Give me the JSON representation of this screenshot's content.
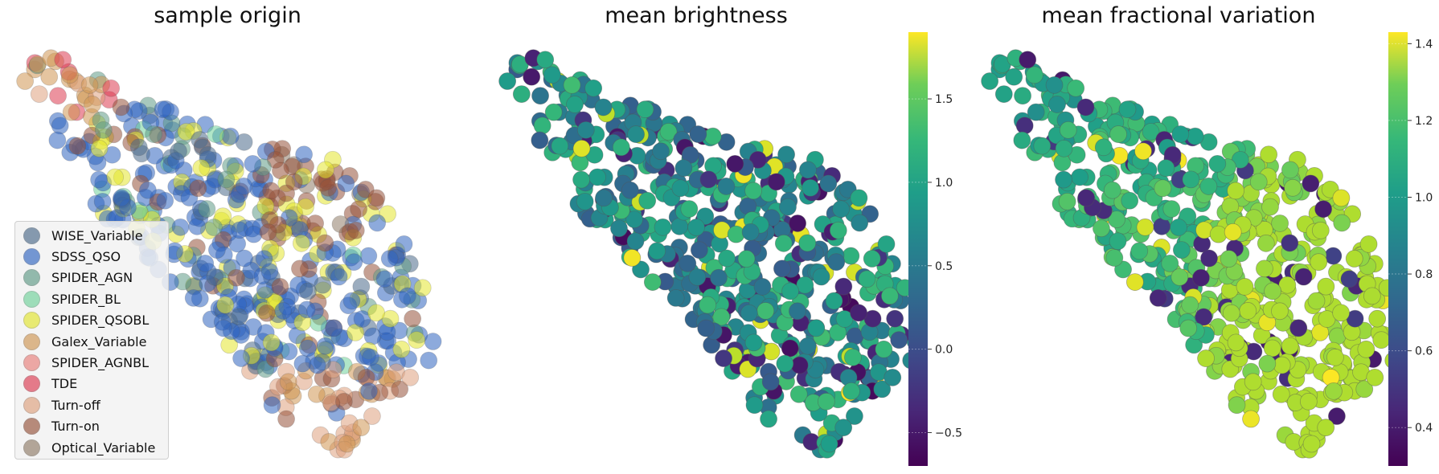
{
  "chart_data": [
    {
      "type": "scatter",
      "title": "sample origin",
      "coloring": "categorical",
      "legend_placement": "lower-left",
      "grid": false,
      "series": [
        {
          "name": "WISE_Variable",
          "color": "#4a6a8a"
        },
        {
          "name": "SDSS_QSO",
          "color": "#2f64c0"
        },
        {
          "name": "SPIDER_AGN",
          "color": "#5f9a86"
        },
        {
          "name": "SPIDER_BL",
          "color": "#6fd29a"
        },
        {
          "name": "SPIDER_QSOBL",
          "color": "#e3e52e"
        },
        {
          "name": "Galex_Variable",
          "color": "#cf9552"
        },
        {
          "name": "SPIDER_AGNBL",
          "color": "#e97f7a"
        },
        {
          "name": "TDE",
          "color": "#dc3a50"
        },
        {
          "name": "Turn-off",
          "color": "#dea07d"
        },
        {
          "name": "Turn-on",
          "color": "#95523a"
        },
        {
          "name": "Optical_Variable",
          "color": "#8f7c68"
        }
      ]
    },
    {
      "type": "scatter",
      "title": "mean brightness",
      "coloring": "continuous",
      "colormap": "viridis",
      "grid": false,
      "colorbar": {
        "min": -0.7,
        "max": 1.9,
        "ticks": [
          "−0.5",
          "0.0",
          "0.5",
          "1.0",
          "1.5"
        ],
        "tick_values": [
          -0.5,
          0.0,
          0.5,
          1.0,
          1.5
        ]
      }
    },
    {
      "type": "scatter",
      "title": "mean fractional variation",
      "coloring": "continuous",
      "colormap": "viridis",
      "grid": false,
      "colorbar": {
        "min": 0.3,
        "max": 1.43,
        "ticks": [
          "0.4",
          "0.6",
          "0.8",
          "1.0",
          "1.2",
          "1.4"
        ],
        "tick_values": [
          0.4,
          0.6,
          0.8,
          1.0,
          1.2,
          1.4
        ]
      }
    }
  ]
}
